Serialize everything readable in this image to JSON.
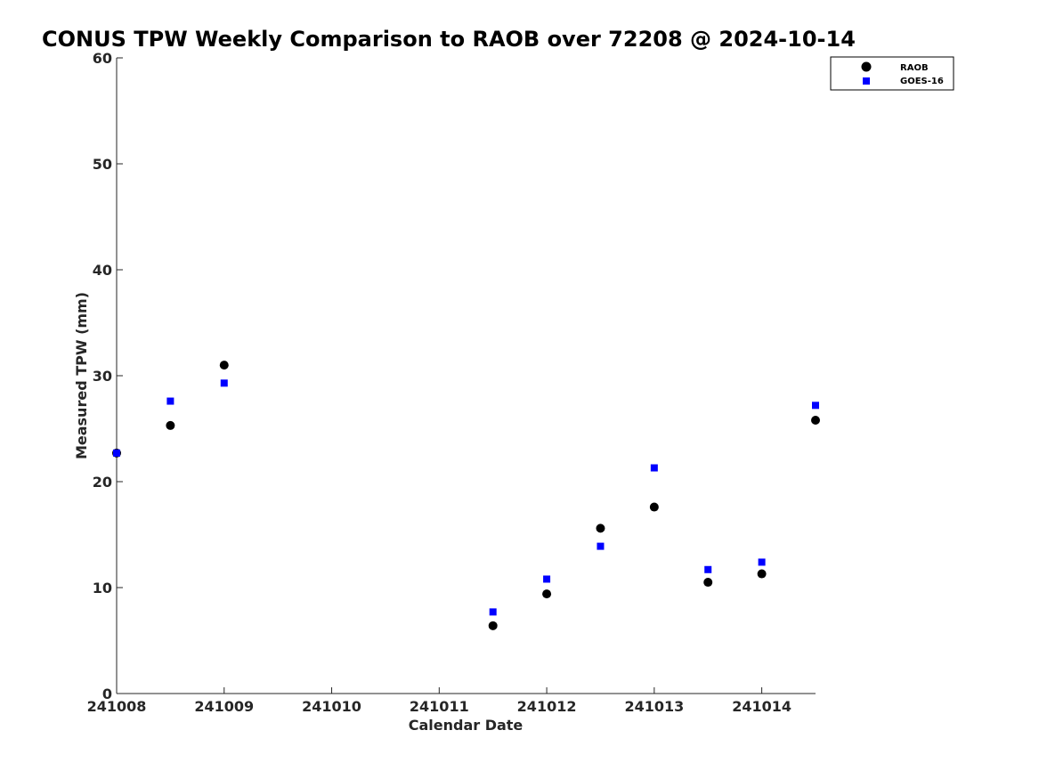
{
  "chart_data": {
    "type": "scatter",
    "title": "CONUS TPW Weekly Comparison to RAOB over 72208 @ 2024-10-14",
    "xlabel": "Calendar Date",
    "ylabel": "Measured TPW (mm)",
    "x_tick_labels": [
      "241008",
      "241009",
      "241010",
      "241011",
      "241012",
      "241013",
      "241014"
    ],
    "y_tick_labels": [
      "0",
      "10",
      "20",
      "30",
      "40",
      "50",
      "60"
    ],
    "ylim": [
      0,
      60
    ],
    "x_ticks": [
      "2024-10-08",
      "2024-10-09",
      "2024-10-10",
      "2024-10-11",
      "2024-10-12",
      "2024-10-13",
      "2024-10-14"
    ],
    "xlim": [
      "2024-10-08 00:00",
      "2024-10-14 12:00"
    ],
    "grid": false,
    "legend": {
      "position": "top-right",
      "entries": [
        "RAOB",
        "GOES-16"
      ]
    },
    "series": [
      {
        "name": "RAOB",
        "marker": "circle",
        "color": "#000000",
        "points": [
          {
            "x": "2024-10-08 00:00",
            "y": 22.7
          },
          {
            "x": "2024-10-08 12:00",
            "y": 25.3
          },
          {
            "x": "2024-10-09 00:00",
            "y": 31.0
          },
          {
            "x": "2024-10-11 12:00",
            "y": 6.4
          },
          {
            "x": "2024-10-12 00:00",
            "y": 9.4
          },
          {
            "x": "2024-10-12 12:00",
            "y": 15.6
          },
          {
            "x": "2024-10-13 00:00",
            "y": 17.6
          },
          {
            "x": "2024-10-13 12:00",
            "y": 10.5
          },
          {
            "x": "2024-10-14 00:00",
            "y": 11.3
          },
          {
            "x": "2024-10-14 12:00",
            "y": 25.8
          }
        ]
      },
      {
        "name": "GOES-16",
        "marker": "square",
        "color": "#0000ff",
        "points": [
          {
            "x": "2024-10-08 00:00",
            "y": 22.7
          },
          {
            "x": "2024-10-08 12:00",
            "y": 27.6
          },
          {
            "x": "2024-10-09 00:00",
            "y": 29.3
          },
          {
            "x": "2024-10-11 12:00",
            "y": 7.7
          },
          {
            "x": "2024-10-12 00:00",
            "y": 10.8
          },
          {
            "x": "2024-10-12 12:00",
            "y": 13.9
          },
          {
            "x": "2024-10-13 00:00",
            "y": 21.3
          },
          {
            "x": "2024-10-13 12:00",
            "y": 11.7
          },
          {
            "x": "2024-10-14 00:00",
            "y": 12.4
          },
          {
            "x": "2024-10-14 12:00",
            "y": 27.2
          }
        ]
      }
    ]
  }
}
